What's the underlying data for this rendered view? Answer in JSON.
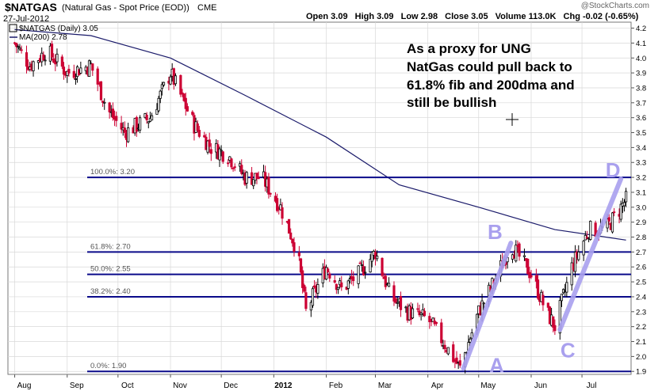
{
  "header": {
    "ticker": "$NATGAS",
    "description": "(Natural Gas - Spot Price (EOD))",
    "exchange": "CME",
    "date": "27-Jul-2012",
    "watermark": "@StockCharts.com",
    "quote": {
      "open": "Open 3.09",
      "high": "High 3.09",
      "low": "Low 2.98",
      "close": "Close 3.05",
      "volume": "Volume 113.0K",
      "change": "Chg -0.02 (-0.65%)"
    }
  },
  "legend": {
    "price_label": "$NATGAS (Daily) 3.05",
    "ma_label": "MA(200) 2.78"
  },
  "annotation": {
    "text_lines": [
      "As a proxy for UNG",
      "NatGas could pull back to",
      "61.8% fib and 200dma and",
      "still be bullish"
    ],
    "points": [
      "A",
      "B",
      "C",
      "D"
    ]
  },
  "colors": {
    "up": "#000000",
    "down": "#cc0033",
    "fib_line": "#0a0a8a",
    "ma_line": "#1a1a6a",
    "abcd": "#a9a0ee",
    "grid": "#d8d8d8"
  },
  "chart_data": {
    "type": "candlestick",
    "title": "$NATGAS (Natural Gas - Spot Price (EOD))",
    "x_labels": [
      "Aug",
      "Sep",
      "Oct",
      "Nov",
      "Dec",
      "2012",
      "Feb",
      "Mar",
      "Apr",
      "May",
      "Jun",
      "Jul"
    ],
    "y_ticks": [
      1.9,
      2.0,
      2.1,
      2.2,
      2.3,
      2.4,
      2.5,
      2.6,
      2.7,
      2.8,
      2.9,
      3.0,
      3.1,
      3.2,
      3.3,
      3.4,
      3.5,
      3.6,
      3.7,
      3.8,
      3.9,
      4.0,
      4.1,
      4.2
    ],
    "ylim": [
      1.88,
      4.24
    ],
    "grid": true,
    "fib_levels": [
      {
        "label": "100.0%: 3.20",
        "value": 3.2
      },
      {
        "label": "61.8%: 2.70",
        "value": 2.7
      },
      {
        "label": "50.0%: 2.55",
        "value": 2.55
      },
      {
        "label": "38.2%: 2.40",
        "value": 2.4
      },
      {
        "label": "0.0%: 1.90",
        "value": 1.9
      }
    ],
    "price_path": [
      {
        "date": "2011-08-01",
        "close": 4.1
      },
      {
        "date": "2011-08-10",
        "close": 3.95
      },
      {
        "date": "2011-08-20",
        "close": 4.05
      },
      {
        "date": "2011-09-01",
        "close": 3.9
      },
      {
        "date": "2011-09-15",
        "close": 3.95
      },
      {
        "date": "2011-09-25",
        "close": 3.65
      },
      {
        "date": "2011-10-05",
        "close": 3.5
      },
      {
        "date": "2011-10-20",
        "close": 3.6
      },
      {
        "date": "2011-11-01",
        "close": 3.9
      },
      {
        "date": "2011-11-15",
        "close": 3.55
      },
      {
        "date": "2011-11-25",
        "close": 3.4
      },
      {
        "date": "2011-12-05",
        "close": 3.35
      },
      {
        "date": "2011-12-15",
        "close": 3.2
      },
      {
        "date": "2011-12-25",
        "close": 3.2
      },
      {
        "date": "2012-01-05",
        "close": 3.0
      },
      {
        "date": "2012-01-15",
        "close": 2.7
      },
      {
        "date": "2012-01-20",
        "close": 2.3
      },
      {
        "date": "2012-02-01",
        "close": 2.6
      },
      {
        "date": "2012-02-10",
        "close": 2.45
      },
      {
        "date": "2012-02-20",
        "close": 2.55
      },
      {
        "date": "2012-03-01",
        "close": 2.7
      },
      {
        "date": "2012-03-10",
        "close": 2.4
      },
      {
        "date": "2012-03-20",
        "close": 2.3
      },
      {
        "date": "2012-04-01",
        "close": 2.25
      },
      {
        "date": "2012-04-10",
        "close": 2.1
      },
      {
        "date": "2012-04-20",
        "close": 1.92
      },
      {
        "date": "2012-05-01",
        "close": 2.3
      },
      {
        "date": "2012-05-10",
        "close": 2.5
      },
      {
        "date": "2012-05-20",
        "close": 2.75
      },
      {
        "date": "2012-06-01",
        "close": 2.55
      },
      {
        "date": "2012-06-10",
        "close": 2.3
      },
      {
        "date": "2012-06-15",
        "close": 2.2
      },
      {
        "date": "2012-06-25",
        "close": 2.6
      },
      {
        "date": "2012-07-05",
        "close": 2.85
      },
      {
        "date": "2012-07-15",
        "close": 2.85
      },
      {
        "date": "2012-07-27",
        "close": 3.05
      }
    ],
    "ma200_path": [
      {
        "date": "2011-08-01",
        "value": 4.19
      },
      {
        "date": "2011-09-15",
        "value": 4.15
      },
      {
        "date": "2011-11-01",
        "value": 4.0
      },
      {
        "date": "2011-12-15",
        "value": 3.75
      },
      {
        "date": "2012-02-01",
        "value": 3.47
      },
      {
        "date": "2012-03-15",
        "value": 3.15
      },
      {
        "date": "2012-05-01",
        "value": 3.0
      },
      {
        "date": "2012-06-15",
        "value": 2.85
      },
      {
        "date": "2012-07-27",
        "value": 2.78
      }
    ]
  }
}
